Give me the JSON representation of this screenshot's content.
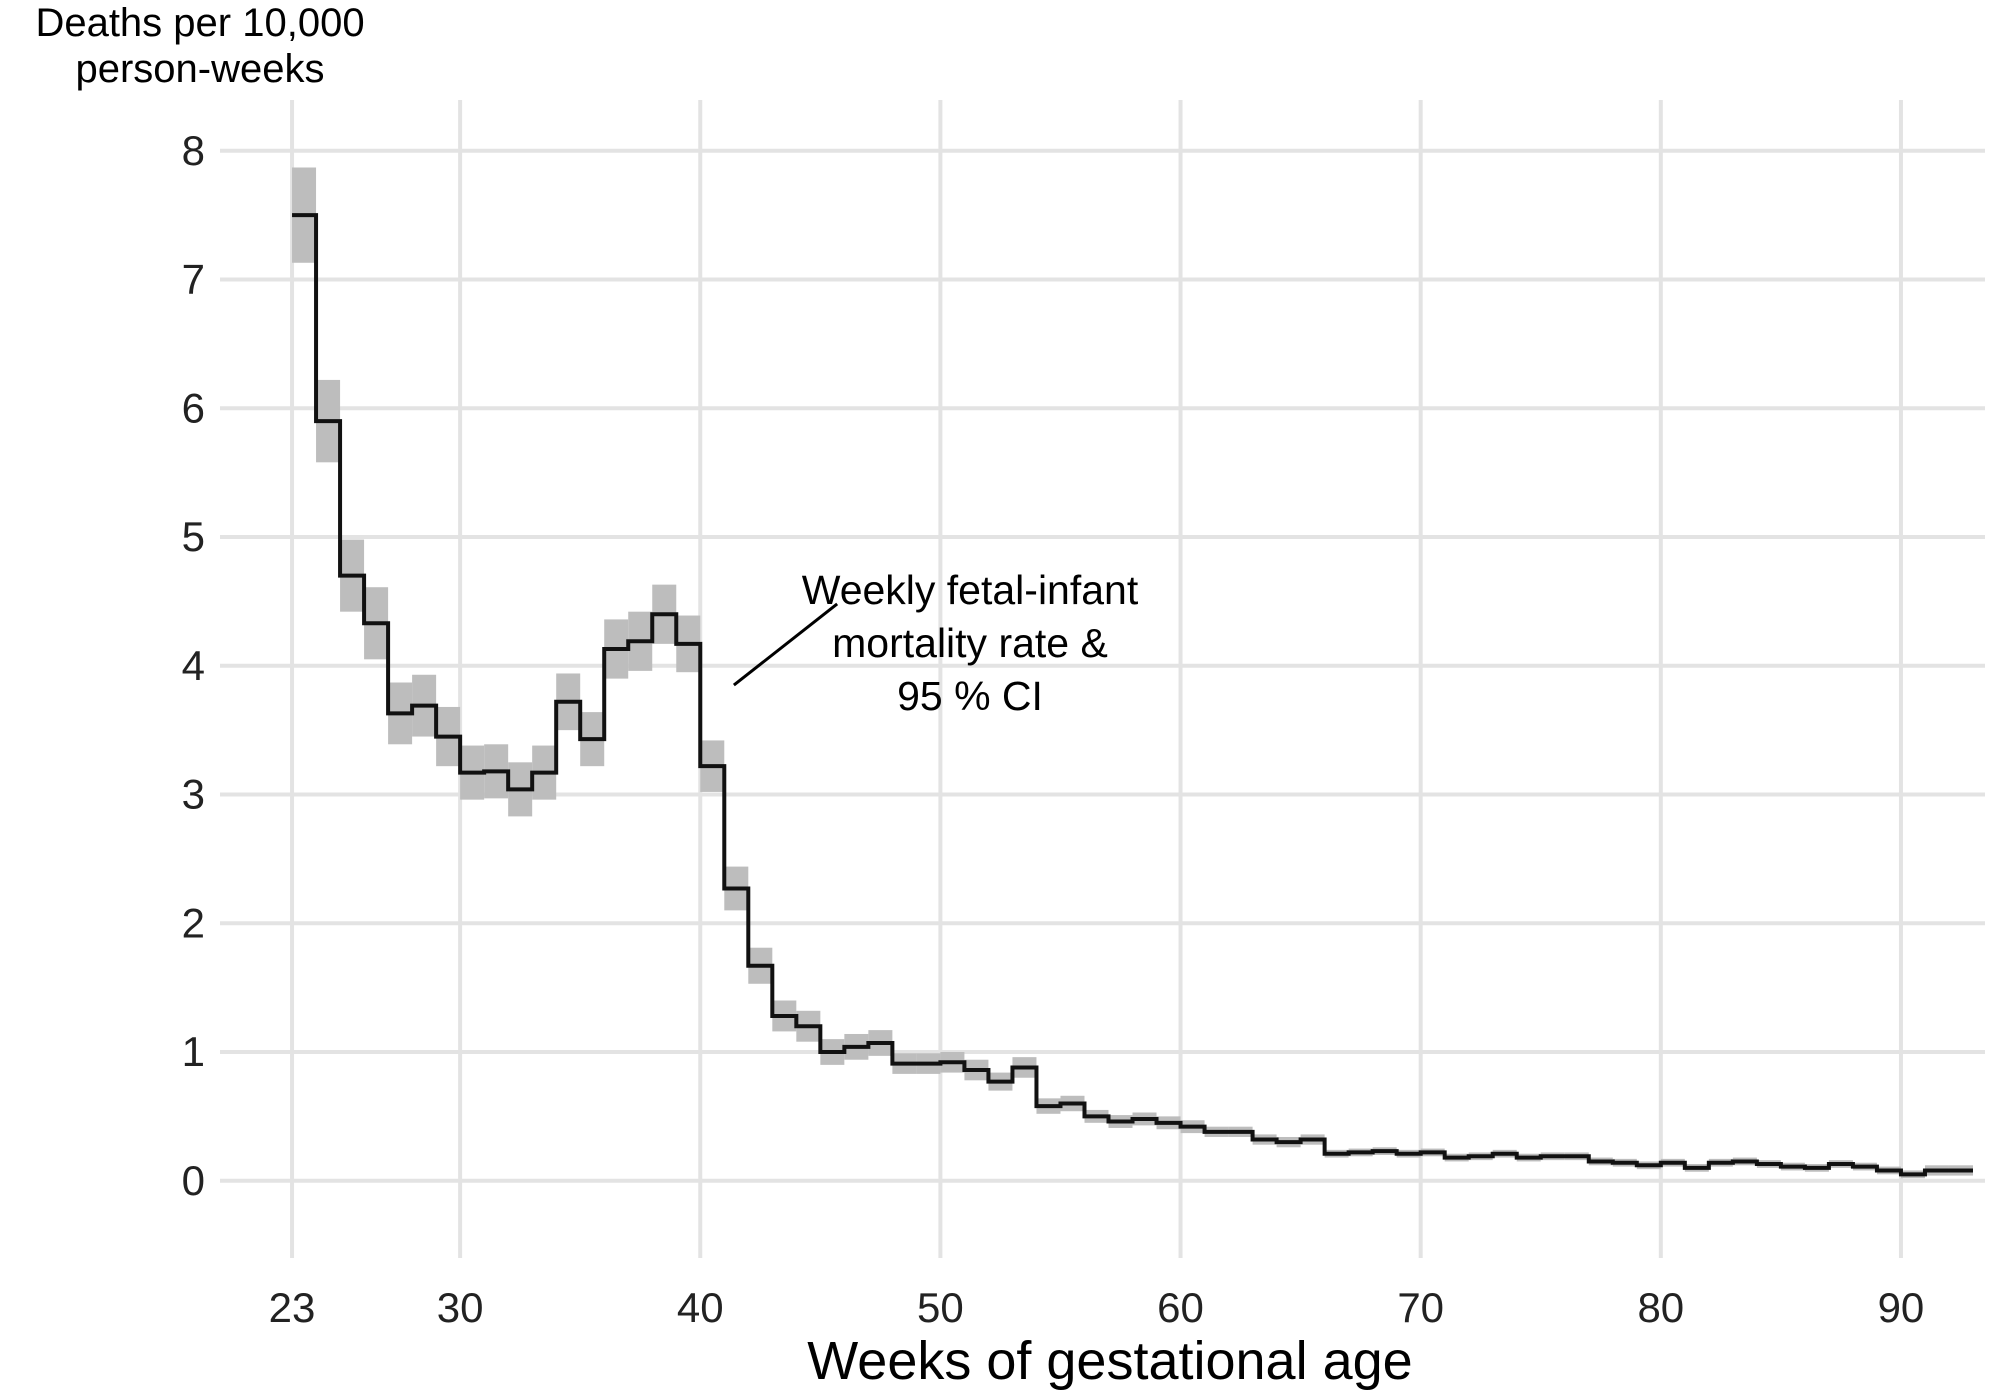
{
  "chart_data": {
    "type": "line",
    "ylabel_lines": [
      "Deaths per 10,000",
      "person-weeks"
    ],
    "xlabel": "Weeks of gestational age",
    "xlim": [
      20,
      93.5
    ],
    "ylim": [
      -0.6,
      8.2
    ],
    "x_ticks": [
      23,
      30,
      40,
      50,
      60,
      70,
      80,
      90
    ],
    "y_ticks": [
      0,
      1,
      2,
      3,
      4,
      5,
      6,
      7,
      8
    ],
    "grid": true,
    "annotation": {
      "lines": [
        "Weekly fetal-infant",
        "mortality rate &",
        "95 % CI"
      ],
      "pointer_from": [
        41.4,
        3.85
      ],
      "pointer_to": [
        45.7,
        4.48
      ]
    },
    "series": [
      {
        "step": "post",
        "x": [
          23,
          24,
          25,
          26,
          27,
          28,
          29,
          30,
          31,
          32,
          33,
          34,
          35,
          36,
          37,
          38,
          39,
          40,
          41,
          42,
          43,
          44,
          45,
          46,
          47,
          48,
          49,
          50,
          51,
          52,
          53,
          54,
          55,
          56,
          57,
          58,
          59,
          60,
          61,
          62,
          63,
          64,
          65,
          66,
          67,
          68,
          69,
          70,
          71,
          72,
          73,
          74,
          75,
          76,
          77,
          78,
          79,
          80,
          81,
          82,
          83,
          84,
          85,
          86,
          87,
          88,
          89,
          90,
          91,
          92
        ],
        "y": [
          7.5,
          5.9,
          4.7,
          4.33,
          3.63,
          3.69,
          3.45,
          3.17,
          3.18,
          3.04,
          3.17,
          3.72,
          3.43,
          4.13,
          4.19,
          4.4,
          4.17,
          3.22,
          2.27,
          1.67,
          1.28,
          1.2,
          1.0,
          1.04,
          1.07,
          0.91,
          0.91,
          0.92,
          0.86,
          0.77,
          0.88,
          0.58,
          0.6,
          0.5,
          0.46,
          0.48,
          0.45,
          0.42,
          0.38,
          0.38,
          0.32,
          0.3,
          0.32,
          0.21,
          0.22,
          0.23,
          0.21,
          0.22,
          0.18,
          0.19,
          0.21,
          0.18,
          0.19,
          0.19,
          0.15,
          0.14,
          0.12,
          0.14,
          0.1,
          0.14,
          0.15,
          0.13,
          0.11,
          0.1,
          0.13,
          0.11,
          0.08,
          0.05,
          0.08,
          0.08
        ],
        "ci_low": [
          7.13,
          5.58,
          4.42,
          4.05,
          3.39,
          3.45,
          3.22,
          2.96,
          2.97,
          2.83,
          2.96,
          3.5,
          3.22,
          3.9,
          3.96,
          4.17,
          3.95,
          3.02,
          2.1,
          1.53,
          1.16,
          1.08,
          0.9,
          0.94,
          0.97,
          0.83,
          0.83,
          0.84,
          0.78,
          0.7,
          0.8,
          0.52,
          0.54,
          0.45,
          0.41,
          0.43,
          0.4,
          0.37,
          0.34,
          0.34,
          0.28,
          0.26,
          0.28,
          0.18,
          0.19,
          0.2,
          0.18,
          0.19,
          0.15,
          0.16,
          0.18,
          0.15,
          0.16,
          0.16,
          0.12,
          0.11,
          0.09,
          0.11,
          0.07,
          0.11,
          0.12,
          0.1,
          0.08,
          0.07,
          0.1,
          0.08,
          0.05,
          0.02,
          0.04,
          0.04
        ],
        "ci_high": [
          7.87,
          6.22,
          4.98,
          4.61,
          3.87,
          3.93,
          3.68,
          3.38,
          3.39,
          3.25,
          3.38,
          3.94,
          3.64,
          4.36,
          4.42,
          4.63,
          4.39,
          3.42,
          2.44,
          1.81,
          1.4,
          1.32,
          1.1,
          1.14,
          1.17,
          0.99,
          0.99,
          1.0,
          0.94,
          0.84,
          0.96,
          0.64,
          0.66,
          0.55,
          0.51,
          0.53,
          0.5,
          0.47,
          0.42,
          0.42,
          0.36,
          0.34,
          0.36,
          0.24,
          0.25,
          0.26,
          0.24,
          0.25,
          0.21,
          0.22,
          0.24,
          0.21,
          0.22,
          0.22,
          0.18,
          0.17,
          0.15,
          0.17,
          0.13,
          0.17,
          0.18,
          0.16,
          0.14,
          0.13,
          0.16,
          0.14,
          0.11,
          0.08,
          0.12,
          0.12
        ]
      }
    ]
  }
}
